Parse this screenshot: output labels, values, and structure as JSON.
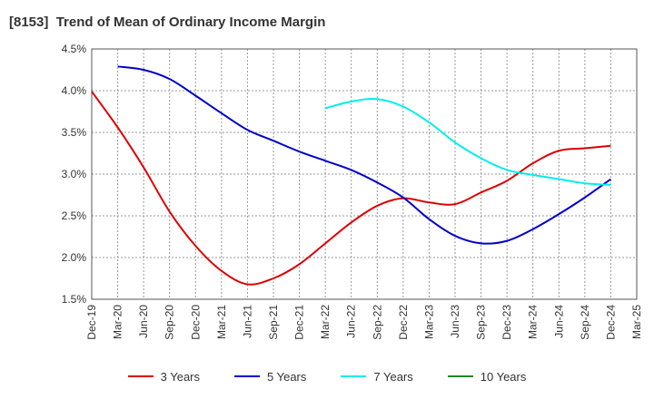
{
  "chart_data": {
    "type": "line",
    "title": "[8153]  Trend of Mean of Ordinary Income Margin",
    "x_tick_labels": [
      "Dec-19",
      "Mar-20",
      "Jun-20",
      "Sep-20",
      "Dec-20",
      "Mar-21",
      "Jun-21",
      "Sep-21",
      "Dec-21",
      "Mar-22",
      "Jun-22",
      "Sep-22",
      "Dec-22",
      "Mar-23",
      "Jun-23",
      "Sep-23",
      "Dec-23",
      "Mar-24",
      "Jun-24",
      "Sep-24",
      "Dec-24",
      "Mar-25"
    ],
    "y_tick_labels": [
      "4.5%",
      "4.0%",
      "3.5%",
      "3.0%",
      "2.5%",
      "2.0%",
      "1.5%"
    ],
    "ylim": [
      1.5,
      4.5
    ],
    "grid": true,
    "legend_position": "bottom",
    "series": [
      {
        "name": "3 Years",
        "color": "#dd0000",
        "x": [
          "Dec-19",
          "Mar-20",
          "Jun-20",
          "Sep-20",
          "Dec-20",
          "Mar-21",
          "Jun-21",
          "Sep-21",
          "Dec-21",
          "Mar-22",
          "Jun-22",
          "Sep-22",
          "Dec-22",
          "Mar-23",
          "Jun-23",
          "Sep-23",
          "Dec-23",
          "Mar-24",
          "Jun-24",
          "Sep-24",
          "Dec-24"
        ],
        "values": [
          3.99,
          3.56,
          3.08,
          2.55,
          2.14,
          1.84,
          1.68,
          1.75,
          1.92,
          2.17,
          2.42,
          2.62,
          2.71,
          2.66,
          2.64,
          2.78,
          2.92,
          3.13,
          3.28,
          3.31,
          3.34
        ]
      },
      {
        "name": "5 Years",
        "color": "#0000cc",
        "x": [
          "Mar-20",
          "Jun-20",
          "Sep-20",
          "Dec-20",
          "Mar-21",
          "Jun-21",
          "Sep-21",
          "Dec-21",
          "Mar-22",
          "Jun-22",
          "Sep-22",
          "Dec-22",
          "Mar-23",
          "Jun-23",
          "Sep-23",
          "Dec-23",
          "Mar-24",
          "Jun-24",
          "Sep-24",
          "Dec-24"
        ],
        "values": [
          4.29,
          4.25,
          4.14,
          3.94,
          3.73,
          3.53,
          3.4,
          3.27,
          3.16,
          3.05,
          2.9,
          2.72,
          2.46,
          2.26,
          2.17,
          2.2,
          2.34,
          2.52,
          2.72,
          2.94
        ]
      },
      {
        "name": "7 Years",
        "color": "#00eeee",
        "x": [
          "Mar-22",
          "Jun-22",
          "Sep-22",
          "Dec-22",
          "Mar-23",
          "Jun-23",
          "Sep-23",
          "Dec-23",
          "Mar-24",
          "Jun-24",
          "Sep-24",
          "Dec-24"
        ],
        "values": [
          3.79,
          3.87,
          3.9,
          3.81,
          3.62,
          3.38,
          3.19,
          3.05,
          2.99,
          2.94,
          2.89,
          2.87
        ]
      },
      {
        "name": "10 Years",
        "color": "#228822",
        "x": [],
        "values": []
      }
    ]
  }
}
